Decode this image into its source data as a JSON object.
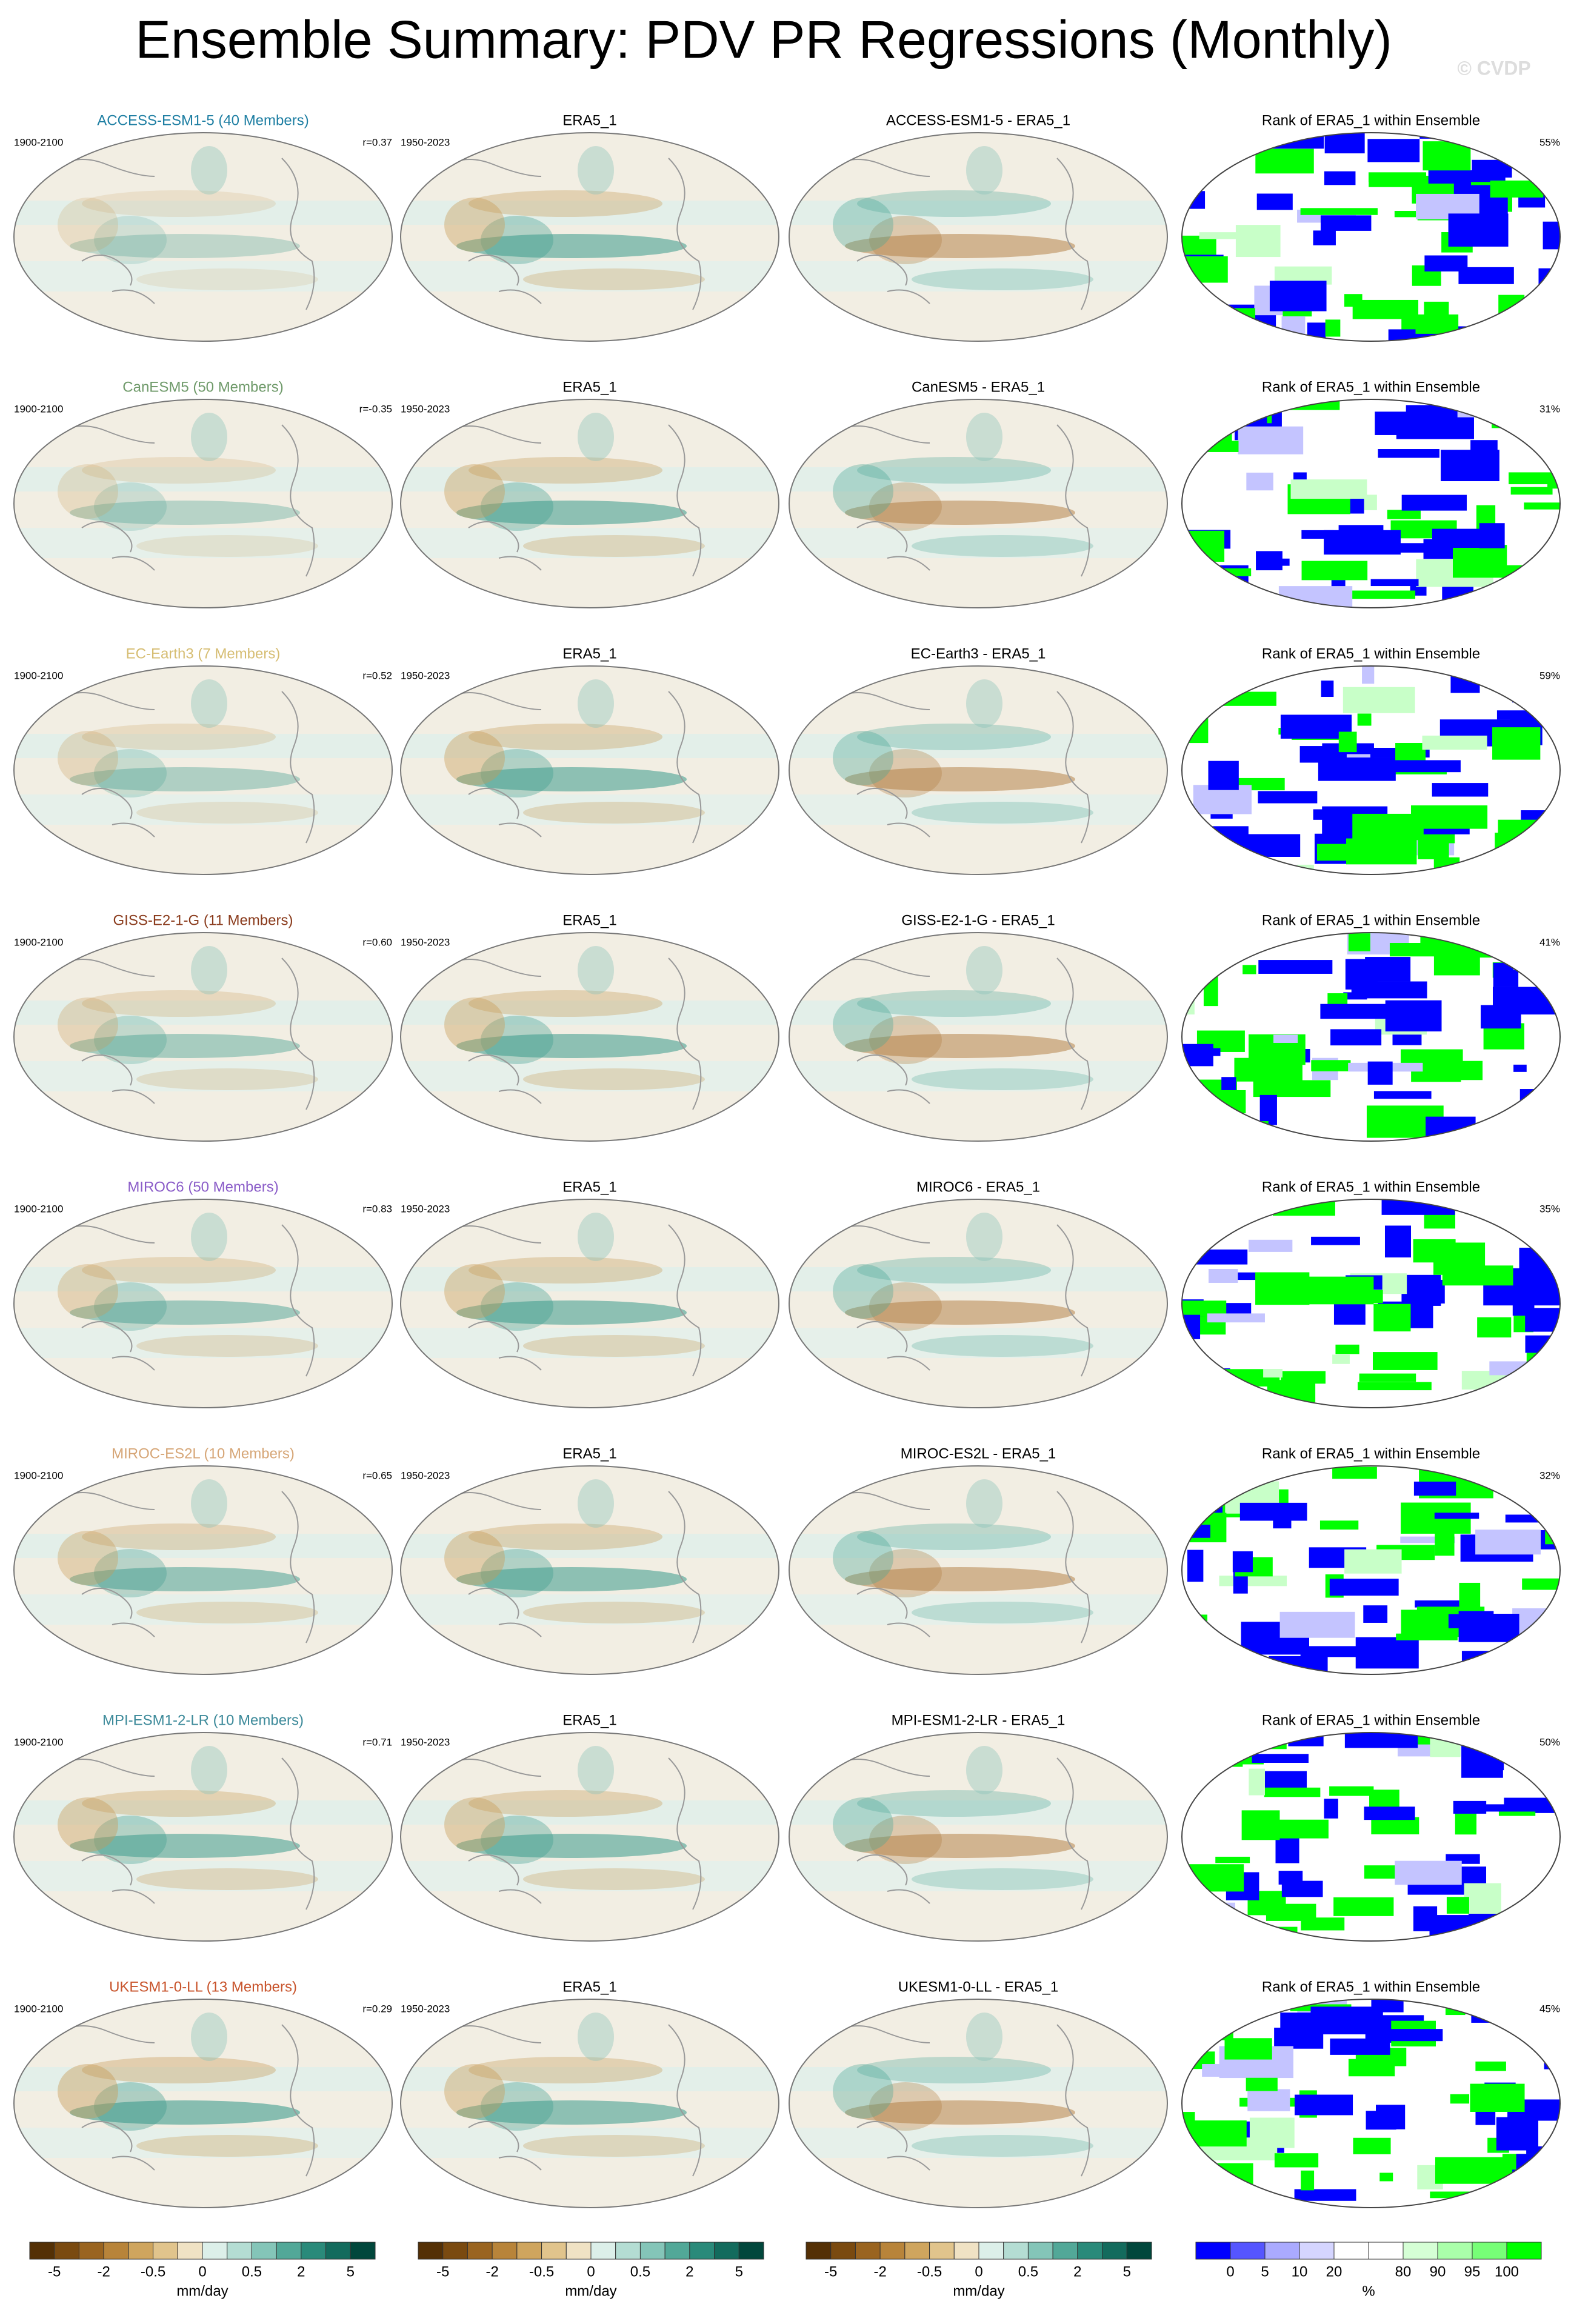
{
  "title": "Ensemble Summary: PDV PR Regressions (Monthly)",
  "watermark": "© CVDP",
  "rows": [
    {
      "model": "ACCESS-ESM1-5 (40 Members)",
      "model_color": "#1f7fa3",
      "model_period": "1900-2100",
      "r": "r=0.37",
      "era_title": "ERA5_1",
      "era_period": "1950-2023",
      "diff_title": "ACCESS-ESM1-5 - ERA5_1",
      "rank_title": "Rank of ERA5_1 within Ensemble",
      "rank_pct": "55%"
    },
    {
      "model": "CanESM5 (50 Members)",
      "model_color": "#6f9a6a",
      "model_period": "1900-2100",
      "r": "r=-0.35",
      "era_title": "ERA5_1",
      "era_period": "1950-2023",
      "diff_title": "CanESM5 - ERA5_1",
      "rank_title": "Rank of ERA5_1 within Ensemble",
      "rank_pct": "31%"
    },
    {
      "model": "EC-Earth3 (7 Members)",
      "model_color": "#d6bd72",
      "model_period": "1900-2100",
      "r": "r=0.52",
      "era_title": "ERA5_1",
      "era_period": "1950-2023",
      "diff_title": "EC-Earth3 - ERA5_1",
      "rank_title": "Rank of ERA5_1 within Ensemble",
      "rank_pct": "59%"
    },
    {
      "model": "GISS-E2-1-G (11 Members)",
      "model_color": "#8a3b1c",
      "model_period": "1900-2100",
      "r": "r=0.60",
      "era_title": "ERA5_1",
      "era_period": "1950-2023",
      "diff_title": "GISS-E2-1-G - ERA5_1",
      "rank_title": "Rank of ERA5_1 within Ensemble",
      "rank_pct": "41%"
    },
    {
      "model": "MIROC6 (50 Members)",
      "model_color": "#8a5cc8",
      "model_period": "1900-2100",
      "r": "r=0.83",
      "era_title": "ERA5_1",
      "era_period": "1950-2023",
      "diff_title": "MIROC6 - ERA5_1",
      "rank_title": "Rank of ERA5_1 within Ensemble",
      "rank_pct": "35%"
    },
    {
      "model": "MIROC-ES2L (10 Members)",
      "model_color": "#d6a677",
      "model_period": "1900-2100",
      "r": "r=0.65",
      "era_title": "ERA5_1",
      "era_period": "1950-2023",
      "diff_title": "MIROC-ES2L - ERA5_1",
      "rank_title": "Rank of ERA5_1 within Ensemble",
      "rank_pct": "32%"
    },
    {
      "model": "MPI-ESM1-2-LR (10 Members)",
      "model_color": "#3d8a9a",
      "model_period": "1900-2100",
      "r": "r=0.71",
      "era_title": "ERA5_1",
      "era_period": "1950-2023",
      "diff_title": "MPI-ESM1-2-LR - ERA5_1",
      "rank_title": "Rank of ERA5_1 within Ensemble",
      "rank_pct": "50%"
    },
    {
      "model": "UKESM1-0-LL (13 Members)",
      "model_color": "#c8542c",
      "model_period": "1900-2100",
      "r": "r=0.29",
      "era_title": "ERA5_1",
      "era_period": "1950-2023",
      "diff_title": "UKESM1-0-LL - ERA5_1",
      "rank_title": "Rank of ERA5_1 within Ensemble",
      "rank_pct": "45%"
    }
  ],
  "colorbars": [
    {
      "labels": [
        "-5",
        "-2",
        "-0.5",
        "0",
        "0.5",
        "2",
        "5"
      ],
      "unit": "mm/day"
    },
    {
      "labels": [
        "-5",
        "-2",
        "-0.5",
        "0",
        "0.5",
        "2",
        "5"
      ],
      "unit": "mm/day"
    },
    {
      "labels": [
        "-5",
        "-2",
        "-0.5",
        "0",
        "0.5",
        "2",
        "5"
      ],
      "unit": "mm/day"
    },
    {
      "labels": [
        "0",
        "5",
        "10",
        "20",
        "80",
        "90",
        "95",
        "100"
      ],
      "unit": "%"
    }
  ]
}
